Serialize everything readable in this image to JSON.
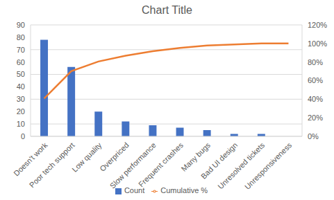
{
  "chart_data": {
    "type": "bar",
    "title": "Chart Title",
    "categories": [
      "Doesn't work",
      "Poor tech support",
      "Low quality",
      "Overpriced",
      "Slow performance",
      "Frequent crashes",
      "Many bugs",
      "Bad UI design",
      "Unresolved tickets",
      "Unresponsiveness"
    ],
    "series": [
      {
        "name": "Count",
        "type": "bar",
        "color": "#4472c4",
        "values": [
          78,
          56,
          20,
          12,
          9,
          7,
          5,
          2,
          2,
          0
        ]
      },
      {
        "name": "Cumulative %",
        "type": "line",
        "color": "#ed7d31",
        "axis": "y2",
        "marker": "none",
        "values": [
          40.8,
          70.2,
          80.6,
          86.9,
          91.6,
          95.3,
          97.9,
          99.0,
          100,
          100
        ]
      }
    ],
    "ylim": [
      0,
      90
    ],
    "yticks": [
      0,
      10,
      20,
      30,
      40,
      50,
      60,
      70,
      80,
      90
    ],
    "y2lim": [
      0,
      120
    ],
    "y2ticks": [
      {
        "value": 0,
        "label": "0%"
      },
      {
        "value": 20,
        "label": "20%"
      },
      {
        "value": 40,
        "label": "40%"
      },
      {
        "value": 60,
        "label": "60%"
      },
      {
        "value": 80,
        "label": "80%"
      },
      {
        "value": 100,
        "label": "100%"
      },
      {
        "value": 120,
        "label": "120%"
      }
    ],
    "grid": true,
    "legend": "bottom"
  }
}
